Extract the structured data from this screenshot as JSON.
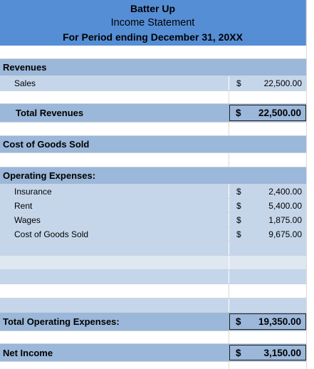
{
  "header": {
    "company": "Batter Up",
    "statement": "Income Statement",
    "period": "For Period ending December 31, 20XX"
  },
  "revenues": {
    "heading": "Revenues",
    "sales_label": "Sales",
    "sales_currency": "$",
    "sales_amount": "22,500.00",
    "total_label": "Total Revenues",
    "total_currency": "$",
    "total_amount": "22,500.00"
  },
  "cogs": {
    "heading": "Cost of Goods Sold"
  },
  "operating_expenses": {
    "heading": "Operating Expenses:",
    "items": [
      {
        "label": "Insurance",
        "currency": "$",
        "amount": "2,400.00"
      },
      {
        "label": "Rent",
        "currency": "$",
        "amount": "5,400.00"
      },
      {
        "label": "Wages",
        "currency": "$",
        "amount": "1,875.00"
      },
      {
        "label": "Cost of Goods Sold",
        "currency": "$",
        "amount": "9,675.00"
      }
    ],
    "total_label": "Total Operating Expenses:",
    "total_currency": "$",
    "total_amount": "19,350.00"
  },
  "net_income": {
    "label": "Net Income",
    "currency": "$",
    "amount": "3,150.00"
  },
  "colors": {
    "header_blue": "#558ed5",
    "row_mid_blue": "#9bb7d9",
    "row_light_blue": "#c6d6ea"
  }
}
